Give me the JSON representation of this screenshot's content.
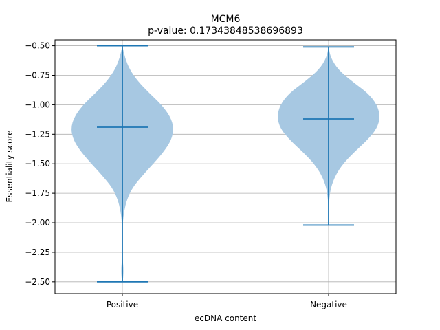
{
  "chart_data": {
    "type": "violin",
    "title": "MCM6",
    "subtitle": "p-value: 0.17343848538696893",
    "xlabel": "ecDNA content",
    "ylabel": "Essentiality score",
    "categories": [
      "Positive",
      "Negative"
    ],
    "ylim": [
      -2.6,
      -0.45
    ],
    "yticks": [
      -0.5,
      -0.75,
      -1.0,
      -1.25,
      -1.5,
      -1.75,
      -2.0,
      -2.25,
      -2.5
    ],
    "ytick_labels": [
      "−0.50",
      "−0.75",
      "−1.00",
      "−1.25",
      "−1.50",
      "−1.75",
      "−2.00",
      "−2.25",
      "−2.50"
    ],
    "grid": true,
    "colors": {
      "body": "#a7c8e2",
      "line": "#1f77b4",
      "grid": "#b0b0b0"
    },
    "series": [
      {
        "category": "Positive",
        "max": -0.5,
        "mean": -1.19,
        "min": -2.5,
        "density": [
          [
            -0.5,
            0.0
          ],
          [
            -0.6,
            0.05
          ],
          [
            -0.7,
            0.14
          ],
          [
            -0.8,
            0.3
          ],
          [
            -0.9,
            0.52
          ],
          [
            -1.0,
            0.76
          ],
          [
            -1.1,
            0.93
          ],
          [
            -1.2,
            1.0
          ],
          [
            -1.3,
            0.95
          ],
          [
            -1.4,
            0.8
          ],
          [
            -1.5,
            0.6
          ],
          [
            -1.6,
            0.39
          ],
          [
            -1.7,
            0.2
          ],
          [
            -1.8,
            0.09
          ],
          [
            -1.9,
            0.035
          ],
          [
            -2.0,
            0.008
          ],
          [
            -2.1,
            0.0
          ],
          [
            -2.2,
            0.0
          ],
          [
            -2.3,
            0.005
          ],
          [
            -2.4,
            0.025
          ],
          [
            -2.5,
            0.01
          ]
        ]
      },
      {
        "category": "Negative",
        "max": -0.51,
        "mean": -1.12,
        "min": -2.02,
        "density": [
          [
            -0.51,
            0.0
          ],
          [
            -0.6,
            0.04
          ],
          [
            -0.7,
            0.18
          ],
          [
            -0.8,
            0.45
          ],
          [
            -0.9,
            0.76
          ],
          [
            -1.0,
            0.94
          ],
          [
            -1.1,
            1.0
          ],
          [
            -1.2,
            0.94
          ],
          [
            -1.3,
            0.75
          ],
          [
            -1.4,
            0.5
          ],
          [
            -1.5,
            0.28
          ],
          [
            -1.6,
            0.13
          ],
          [
            -1.7,
            0.045
          ],
          [
            -1.8,
            0.012
          ],
          [
            -1.9,
            0.004
          ],
          [
            -2.0,
            0.002
          ],
          [
            -2.02,
            0.0
          ]
        ]
      }
    ]
  }
}
